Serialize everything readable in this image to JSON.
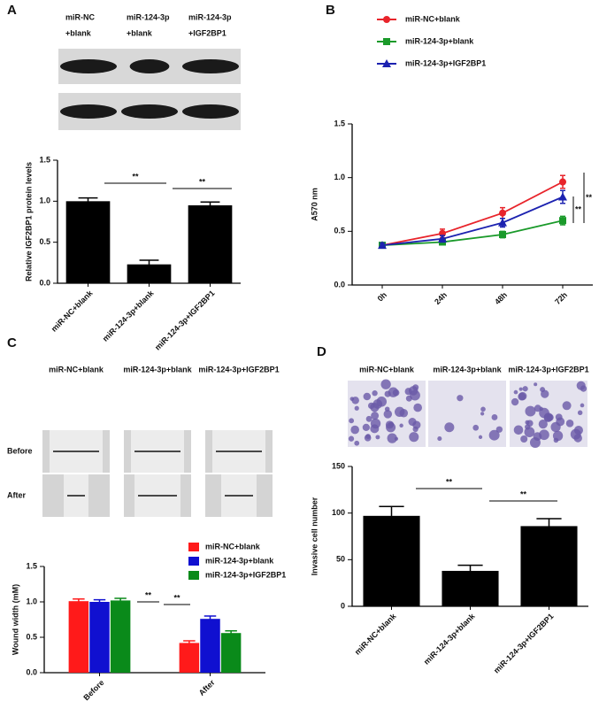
{
  "panel_labels": [
    "A",
    "B",
    "C",
    "D"
  ],
  "blot": {
    "lanes": [
      [
        "miR-NC",
        "+blank"
      ],
      [
        "miR-124-3p",
        "+blank"
      ],
      [
        "miR-124-3p",
        "+IGF2BP1"
      ]
    ]
  },
  "scratch": {
    "columns": [
      "miR-NC+blank",
      "miR-124-3p+blank",
      "miR-124-3p+IGF2BP1"
    ],
    "rows": [
      "Before",
      "After"
    ]
  },
  "invasion": {
    "columns": [
      "miR-NC+blank",
      "miR-124-3p+blank",
      "miR-124-3p+IGF2BP1"
    ]
  },
  "chart_data": [
    {
      "type": "bar",
      "ylabel": "Relative IGF2BP1 protein levels",
      "categories": [
        "miR-NC+blank",
        "miR-124-3p+blank",
        "miR-124-3p+IGF2BP1"
      ],
      "values": [
        1.0,
        0.23,
        0.95
      ],
      "errors": [
        0.04,
        0.05,
        0.04
      ],
      "color": "#000000",
      "ylim": [
        0,
        1.5
      ],
      "yticks": [
        {
          "value": 0,
          "label": "0.0"
        },
        {
          "value": 0.5,
          "label": "0.5"
        },
        {
          "value": 1,
          "label": "1.0"
        },
        {
          "value": 1.5,
          "label": "1.5"
        }
      ],
      "annotations": [
        "**",
        "**"
      ]
    },
    {
      "type": "line",
      "ylabel": "A570 nm",
      "categories": [
        "0h",
        "24h",
        "48h",
        "72h"
      ],
      "series": [
        {
          "name": "miR-NC+blank",
          "color": "#e8242b",
          "values": [
            0.37,
            0.48,
            0.67,
            0.96
          ],
          "errors": [
            0.02,
            0.04,
            0.05,
            0.06
          ]
        },
        {
          "name": "miR-124-3p+blank",
          "color": "#1a9a2a",
          "values": [
            0.37,
            0.4,
            0.47,
            0.6
          ],
          "errors": [
            0.01,
            0.02,
            0.03,
            0.04
          ]
        },
        {
          "name": "miR-124-3p+IGF2BP1",
          "color": "#1c22b0",
          "values": [
            0.37,
            0.43,
            0.58,
            0.82
          ],
          "errors": [
            0.02,
            0.03,
            0.04,
            0.06
          ]
        }
      ],
      "ylim": [
        0,
        1.5
      ],
      "yticks": [
        {
          "value": 0,
          "label": "0.0"
        },
        {
          "value": 0.5,
          "label": "0.5"
        },
        {
          "value": 1,
          "label": "1.0"
        },
        {
          "value": 1.5,
          "label": "1.5"
        }
      ],
      "annotations": [
        "**",
        "**"
      ]
    },
    {
      "type": "grouped_bar",
      "ylabel": "Wound width (mM)",
      "categories": [
        "Before",
        "After"
      ],
      "series": [
        {
          "name": "miR-NC+blank",
          "color": "#ff1a1a",
          "values": [
            1.01,
            0.42
          ],
          "errors": [
            0.03,
            0.03
          ]
        },
        {
          "name": "miR-124-3p+blank",
          "color": "#1010d0",
          "values": [
            1.0,
            0.76
          ],
          "errors": [
            0.03,
            0.04
          ]
        },
        {
          "name": "miR-124-3p+IGF2BP1",
          "color": "#0a8a1a",
          "values": [
            1.02,
            0.56
          ],
          "errors": [
            0.03,
            0.03
          ]
        }
      ],
      "ylim": [
        0,
        1.5
      ],
      "yticks": [
        {
          "value": 0,
          "label": "0.0"
        },
        {
          "value": 0.5,
          "label": "0.5"
        },
        {
          "value": 1,
          "label": "1.0"
        },
        {
          "value": 1.5,
          "label": "1.5"
        }
      ],
      "annotations": [
        "**",
        "**"
      ]
    },
    {
      "type": "bar",
      "ylabel": "Invasive cell number",
      "categories": [
        "miR-NC+blank",
        "miR-124-3p+blank",
        "miR-124-3p+IGF2BP1"
      ],
      "values": [
        97,
        38,
        86
      ],
      "errors": [
        10,
        6,
        8
      ],
      "color": "#000000",
      "ylim": [
        0,
        150
      ],
      "yticks": [
        0,
        50,
        100,
        150
      ],
      "annotations": [
        "**",
        "**"
      ]
    }
  ]
}
